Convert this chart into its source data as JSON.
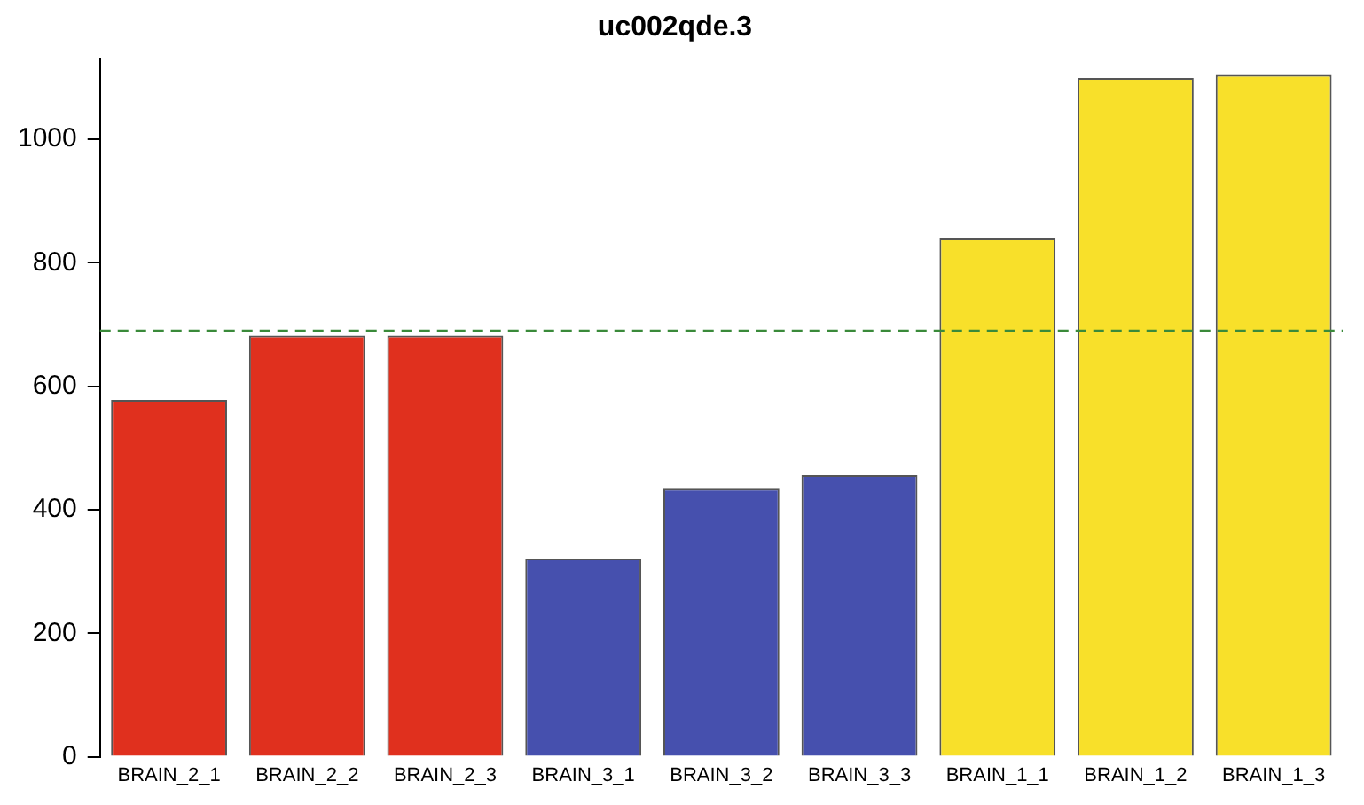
{
  "chart_data": {
    "type": "bar",
    "title": "uc002qde.3",
    "categories": [
      "BRAIN_2_1",
      "BRAIN_2_2",
      "BRAIN_2_3",
      "BRAIN_3_1",
      "BRAIN_3_2",
      "BRAIN_3_3",
      "BRAIN_1_1",
      "BRAIN_1_2",
      "BRAIN_1_3"
    ],
    "values": [
      578,
      682,
      682,
      321,
      434,
      456,
      839,
      1099,
      1104
    ],
    "colors": [
      "#e0301e",
      "#e0301e",
      "#e0301e",
      "#4650ae",
      "#4650ae",
      "#4650ae",
      "#f8e02a",
      "#f8e02a",
      "#f8e02a"
    ],
    "ylim": [
      0,
      1130
    ],
    "yticks": [
      0,
      200,
      400,
      600,
      800,
      1000
    ],
    "grid": false,
    "legend": false,
    "ref_lines": [
      {
        "axis": "y",
        "value": 690,
        "color": "#3a8a3a",
        "line_style": "dashed"
      }
    ]
  }
}
